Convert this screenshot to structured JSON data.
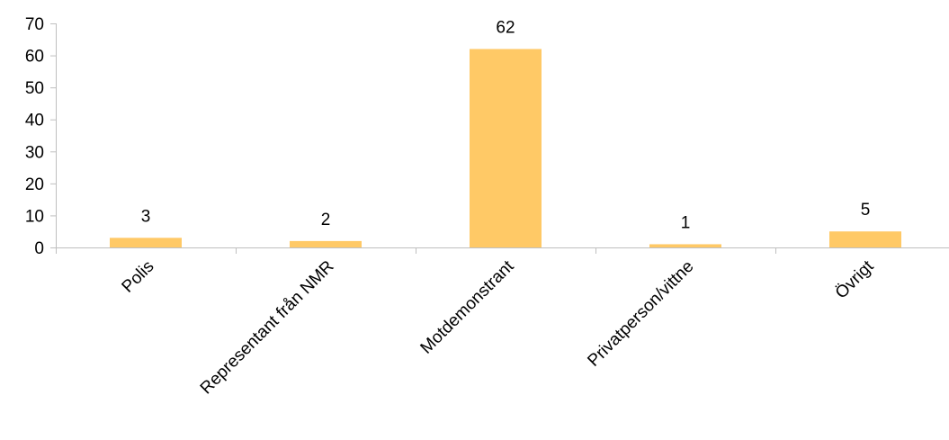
{
  "chart_data": {
    "type": "bar",
    "categories": [
      "Polis",
      "Representant från NMR",
      "Motdemonstrant",
      "Privatperson/vittne",
      "Övrigt"
    ],
    "values": [
      3,
      2,
      62,
      1,
      5
    ],
    "data_labels": [
      "3",
      "2",
      "62",
      "1",
      "5"
    ],
    "title": "",
    "xlabel": "",
    "ylabel": "",
    "ylim": [
      0,
      70
    ],
    "yticks": [
      "0",
      "10",
      "20",
      "30",
      "40",
      "50",
      "60",
      "70"
    ],
    "grid": false,
    "legend": "none",
    "bar_color": "#FFC966",
    "axis_color": "#BFBFBF"
  }
}
